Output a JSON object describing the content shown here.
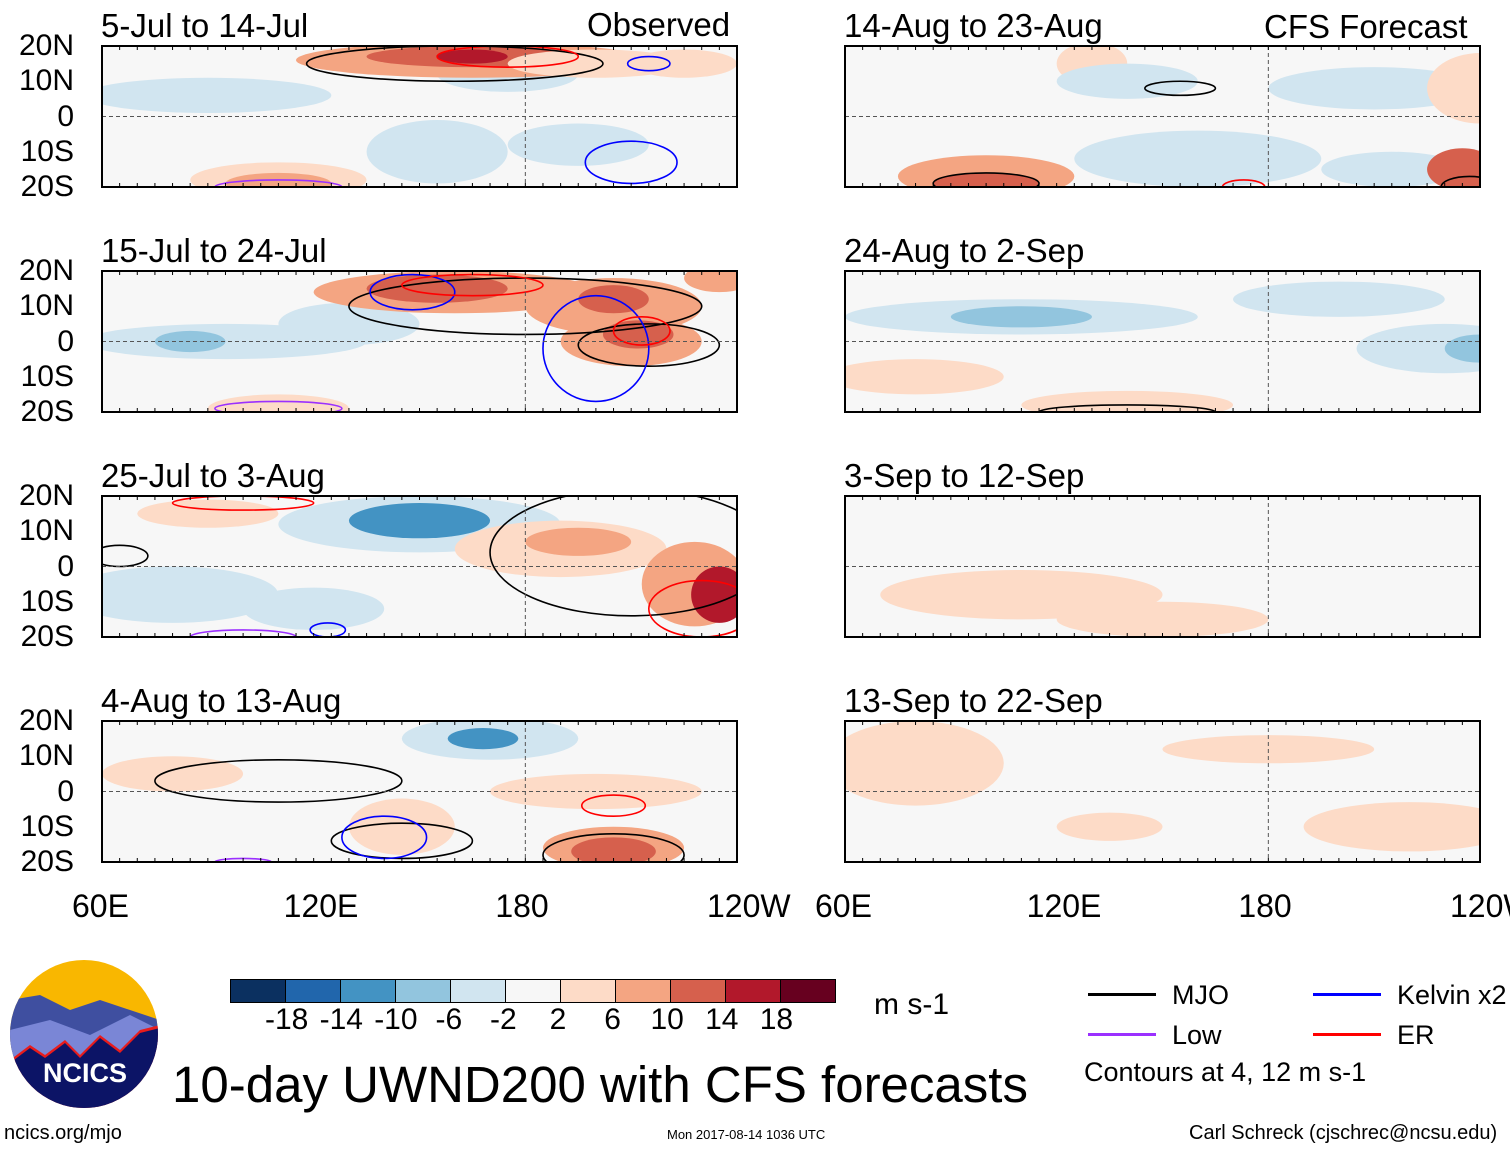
{
  "title": "10-day UWND200 with CFS forecasts",
  "logo_text": "NCICS",
  "footer": {
    "url": "ncics.org/mjo",
    "timestamp": "Mon 2017-08-14 1036 UTC",
    "author": "Carl Schreck (cjschrec@ncsu.edu)"
  },
  "colorbar": {
    "unit": "m s-1",
    "ticks": [
      "-18",
      "-14",
      "-10",
      "-6",
      "-2",
      "2",
      "6",
      "10",
      "14",
      "18"
    ],
    "colors": [
      "#0b3060",
      "#2166ac",
      "#4393c3",
      "#92c5de",
      "#d1e5f0",
      "#f7f7f7",
      "#fddbc7",
      "#f4a582",
      "#d6604d",
      "#b2182b",
      "#67001f"
    ]
  },
  "legend": {
    "items": [
      {
        "label": "MJO",
        "color": "#000000"
      },
      {
        "label": "Kelvin x2",
        "color": "#0000ff"
      },
      {
        "label": "Low",
        "color": "#9b30ff"
      },
      {
        "label": "ER",
        "color": "#ff0000"
      }
    ],
    "note": "Contours at 4, 12 m s-1"
  },
  "chart_data": {
    "type": "heatmap",
    "variable": "200-hPa zonal wind anomaly",
    "lat_range": [
      -20,
      20
    ],
    "lon_range": [
      60,
      240
    ],
    "lat_ticks": [
      "20N",
      "10N",
      "0",
      "10S",
      "20S"
    ],
    "lon_ticks": [
      "60E",
      "120E",
      "180",
      "120W"
    ],
    "left_label": "Observed",
    "right_label": "CFS Forecast",
    "panels": [
      {
        "title": "5-Jul to 14-Jul",
        "col": 0,
        "row": 0,
        "blobs": [
          [
            90,
            6,
            35,
            5,
            -4
          ],
          [
            175,
            12,
            20,
            5,
            -4
          ],
          [
            155,
            -10,
            20,
            9,
            -4
          ],
          [
            195,
            -8,
            20,
            6,
            -3
          ],
          [
            165,
            16,
            50,
            5,
            6
          ],
          [
            165,
            17,
            30,
            3,
            10
          ],
          [
            165,
            17,
            10,
            2,
            14
          ],
          [
            200,
            15,
            25,
            4,
            4
          ],
          [
            110,
            -18,
            25,
            5,
            5
          ],
          [
            110,
            -19,
            15,
            3,
            9
          ],
          [
            225,
            15,
            15,
            4,
            4
          ]
        ],
        "contours": [
          [
            "MJO",
            160,
            15,
            42,
            5
          ],
          [
            "ER",
            175,
            17,
            20,
            3
          ],
          [
            "Kelvin",
            210,
            -13,
            13,
            6
          ],
          [
            "Kelvin",
            215,
            15,
            6,
            2
          ],
          [
            "Low",
            110,
            -20,
            18,
            2
          ]
        ]
      },
      {
        "title": "15-Jul to 24-Jul",
        "col": 0,
        "row": 1,
        "blobs": [
          [
            95,
            0,
            40,
            5,
            -6
          ],
          [
            85,
            0,
            10,
            3,
            -9
          ],
          [
            130,
            5,
            20,
            6,
            -4
          ],
          [
            160,
            14,
            40,
            6,
            6
          ],
          [
            155,
            15,
            20,
            4,
            12
          ],
          [
            205,
            10,
            25,
            8,
            6
          ],
          [
            205,
            12,
            10,
            4,
            12
          ],
          [
            210,
            0,
            20,
            7,
            8
          ],
          [
            212,
            2,
            10,
            4,
            13
          ],
          [
            110,
            -19,
            20,
            4,
            5
          ],
          [
            235,
            18,
            10,
            4,
            8
          ]
        ],
        "contours": [
          [
            "MJO",
            180,
            10,
            50,
            8
          ],
          [
            "MJO",
            215,
            -1,
            20,
            6
          ],
          [
            "Kelvin",
            148,
            14,
            12,
            5
          ],
          [
            "Kelvin",
            200,
            -2,
            15,
            15
          ],
          [
            "ER",
            213,
            3,
            8,
            4
          ],
          [
            "ER",
            165,
            16,
            20,
            3
          ],
          [
            "Low",
            110,
            -19,
            18,
            2
          ]
        ]
      },
      {
        "title": "25-Jul to 3-Aug",
        "col": 0,
        "row": 2,
        "blobs": [
          [
            80,
            -8,
            30,
            8,
            -3
          ],
          [
            150,
            12,
            40,
            8,
            -6
          ],
          [
            150,
            13,
            20,
            5,
            -11
          ],
          [
            190,
            5,
            30,
            8,
            5
          ],
          [
            195,
            7,
            15,
            4,
            9
          ],
          [
            228,
            -5,
            15,
            12,
            9
          ],
          [
            235,
            -8,
            8,
            8,
            15
          ],
          [
            120,
            -12,
            20,
            6,
            -3
          ],
          [
            90,
            15,
            20,
            4,
            4
          ]
        ],
        "contours": [
          [
            "MJO",
            210,
            4,
            40,
            18
          ],
          [
            "MJO",
            65,
            3,
            8,
            3
          ],
          [
            "ER",
            230,
            -12,
            15,
            8
          ],
          [
            "ER",
            100,
            18,
            20,
            2
          ],
          [
            "Kelvin",
            124,
            -18,
            5,
            2
          ],
          [
            "Low",
            100,
            -20,
            15,
            2
          ]
        ]
      },
      {
        "title": "4-Aug to 13-Aug",
        "col": 0,
        "row": 3,
        "blobs": [
          [
            170,
            15,
            25,
            6,
            -6
          ],
          [
            168,
            15,
            10,
            3,
            -12
          ],
          [
            145,
            -10,
            15,
            8,
            5
          ],
          [
            205,
            -16,
            20,
            6,
            8
          ],
          [
            205,
            -17,
            12,
            4,
            13
          ],
          [
            200,
            0,
            30,
            5,
            3
          ],
          [
            80,
            5,
            20,
            5,
            3
          ]
        ],
        "contours": [
          [
            "MJO",
            110,
            3,
            35,
            6
          ],
          [
            "MJO",
            145,
            -14,
            20,
            5
          ],
          [
            "MJO",
            205,
            -18,
            20,
            6
          ],
          [
            "Kelvin",
            140,
            -13,
            12,
            6
          ],
          [
            "ER",
            205,
            -4,
            9,
            3
          ],
          [
            "Low",
            100,
            -20,
            8,
            1
          ]
        ]
      },
      {
        "title": "14-Aug to 23-Aug",
        "col": 1,
        "row": 0,
        "blobs": [
          [
            100,
            -17,
            25,
            6,
            6
          ],
          [
            100,
            -19,
            15,
            3,
            11
          ],
          [
            130,
            15,
            10,
            6,
            5
          ],
          [
            160,
            -12,
            35,
            8,
            -5
          ],
          [
            215,
            -15,
            20,
            5,
            -5
          ],
          [
            210,
            8,
            30,
            6,
            -3
          ],
          [
            235,
            -15,
            10,
            6,
            10
          ],
          [
            240,
            8,
            15,
            10,
            4
          ],
          [
            140,
            10,
            20,
            5,
            -3
          ]
        ],
        "contours": [
          [
            "MJO",
            155,
            8,
            10,
            2
          ],
          [
            "MJO",
            100,
            -19,
            15,
            3
          ],
          [
            "MJO",
            237,
            -20,
            8,
            3
          ],
          [
            "ER",
            173,
            -20,
            6,
            2
          ]
        ]
      },
      {
        "title": "24-Aug to 2-Sep",
        "col": 1,
        "row": 1,
        "blobs": [
          [
            110,
            7,
            50,
            5,
            -4
          ],
          [
            110,
            7,
            20,
            3,
            -7
          ],
          [
            230,
            -2,
            25,
            7,
            -5
          ],
          [
            240,
            -2,
            10,
            4,
            -8
          ],
          [
            80,
            -10,
            25,
            5,
            3
          ],
          [
            140,
            -18,
            30,
            4,
            3
          ],
          [
            200,
            12,
            30,
            5,
            -3
          ]
        ],
        "contours": [
          [
            "MJO",
            140,
            -20,
            25,
            2
          ]
        ]
      },
      {
        "title": "3-Sep to 12-Sep",
        "col": 1,
        "row": 2,
        "blobs": [
          [
            110,
            -8,
            40,
            7,
            3
          ],
          [
            150,
            -15,
            30,
            5,
            3
          ],
          [
            200,
            12,
            25,
            5,
            -2
          ],
          [
            220,
            -5,
            20,
            3,
            -2
          ]
        ],
        "contours": []
      },
      {
        "title": "13-Sep to 22-Sep",
        "col": 1,
        "row": 3,
        "blobs": [
          [
            80,
            8,
            25,
            12,
            3
          ],
          [
            135,
            -10,
            15,
            4,
            3
          ],
          [
            220,
            -10,
            30,
            7,
            3
          ],
          [
            180,
            12,
            30,
            4,
            2
          ]
        ],
        "contours": []
      }
    ]
  }
}
